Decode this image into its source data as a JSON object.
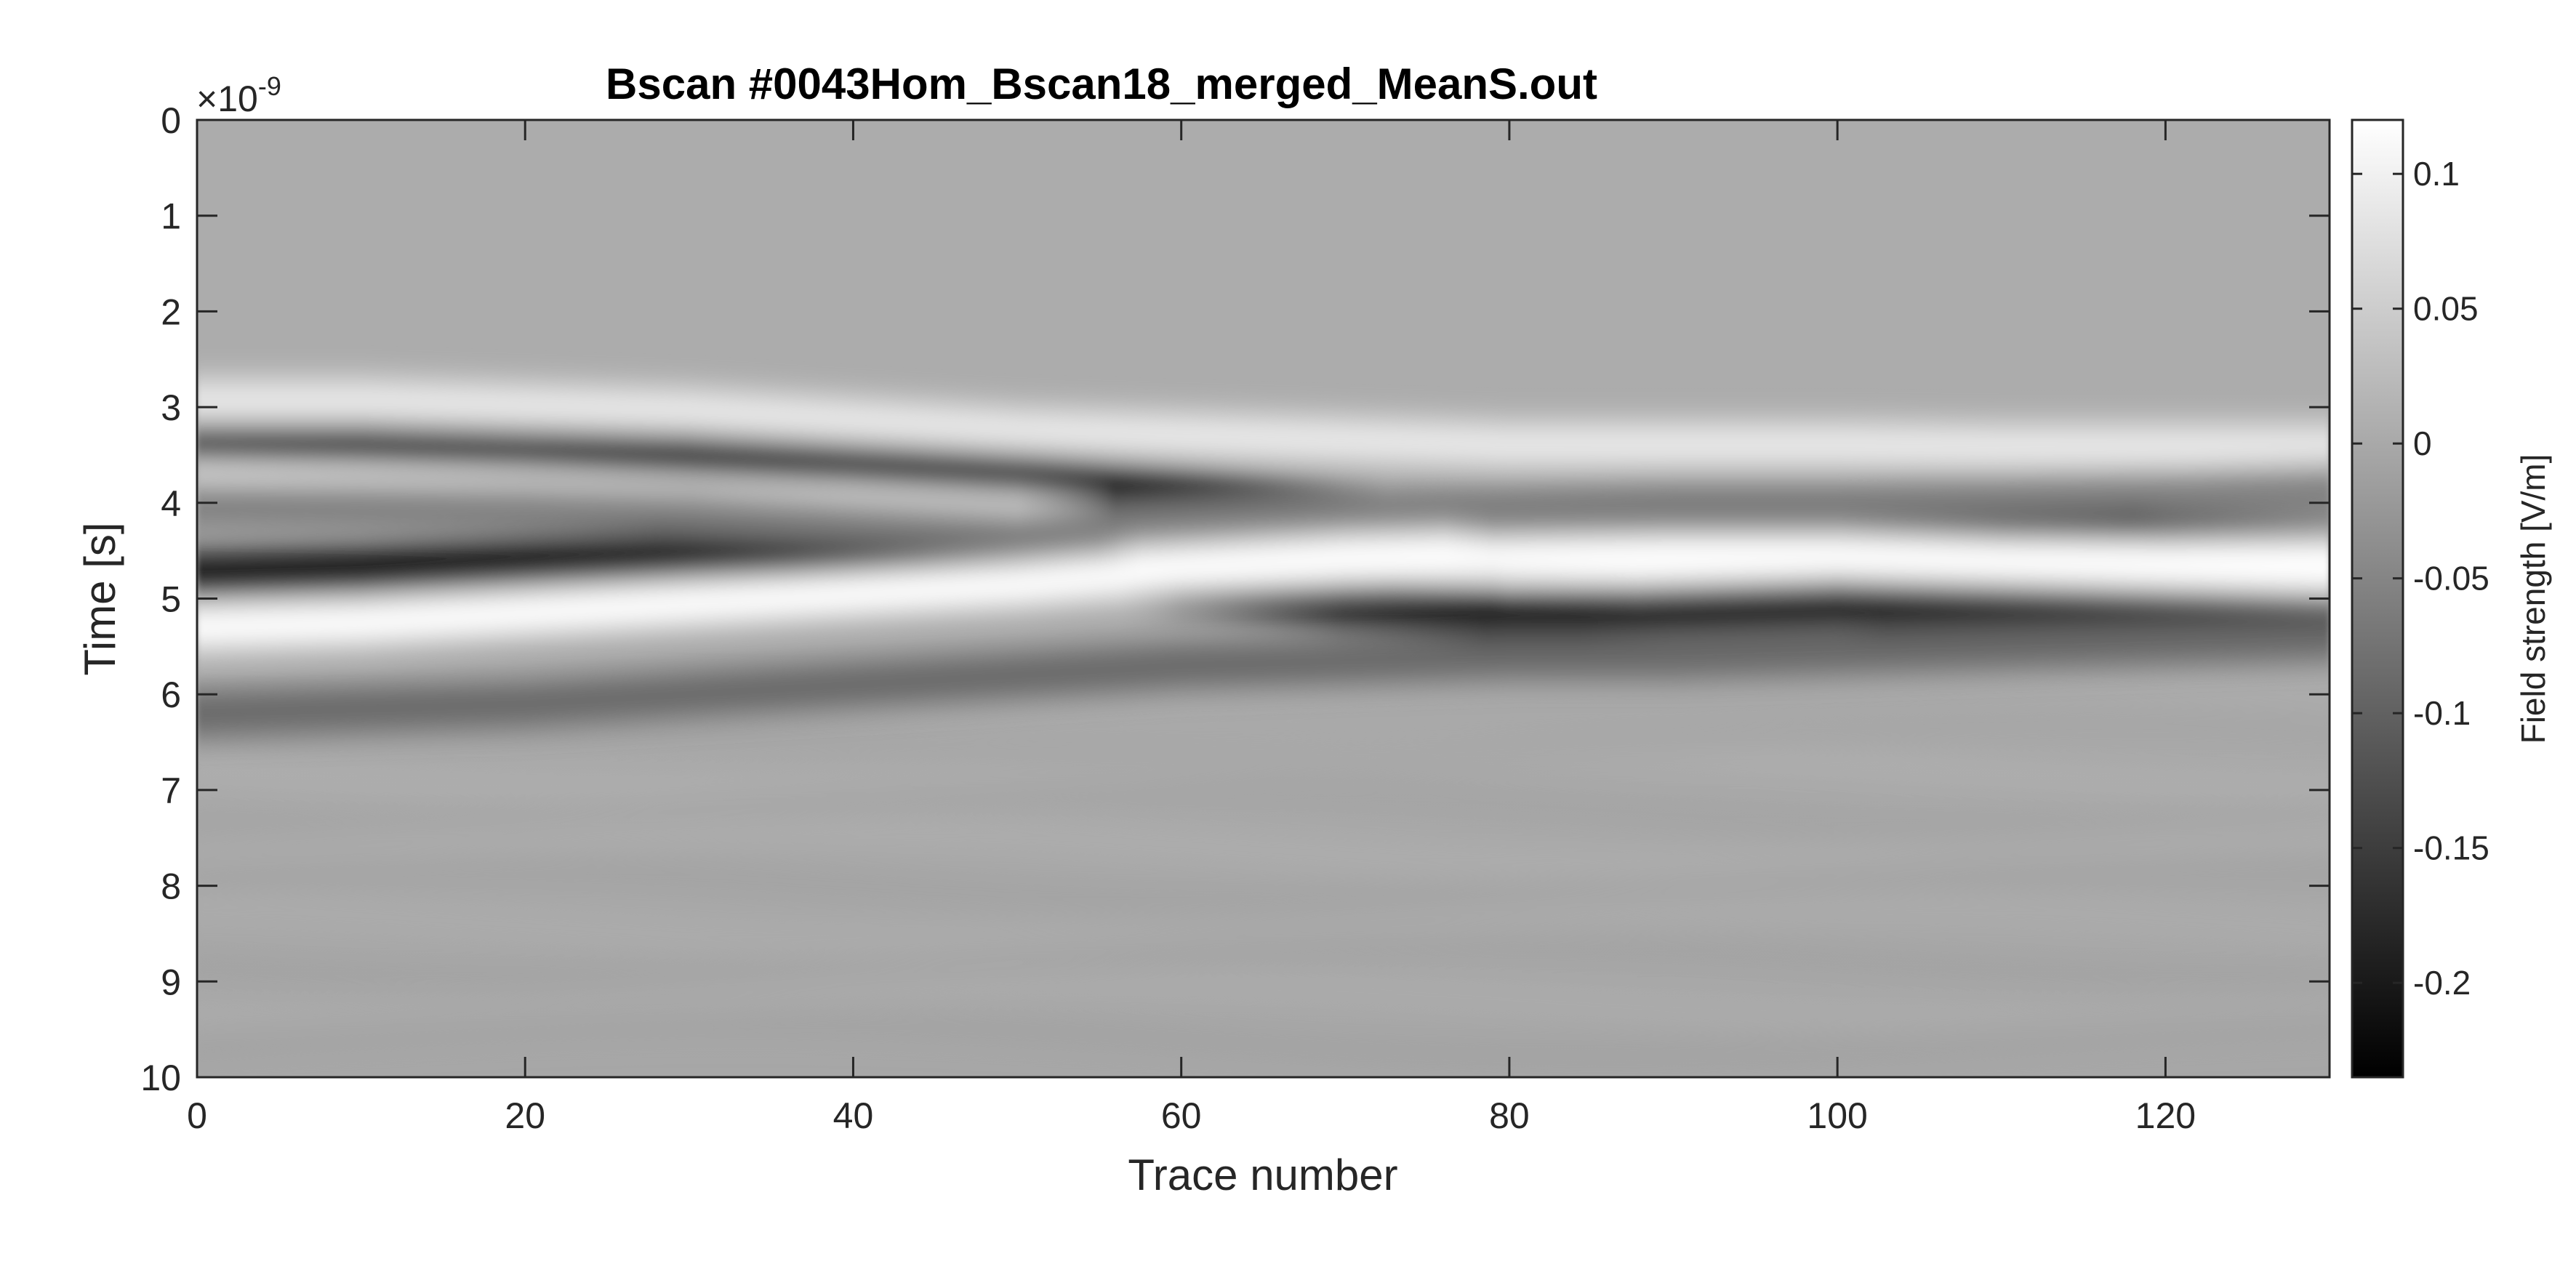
{
  "chart_data": {
    "type": "heatmap",
    "title": "Bscan #0043Hom_Bscan18_merged_MeanS.out",
    "xlabel": "Trace number",
    "ylabel": "Time [s]",
    "y_exponent_label": "×10",
    "y_exponent_power": "-9",
    "xlim": [
      0,
      130
    ],
    "ylim": [
      0,
      10
    ],
    "y_direction": "reversed",
    "x_ticks": [
      "0",
      "20",
      "40",
      "60",
      "80",
      "100",
      "120"
    ],
    "y_ticks": [
      "0",
      "1",
      "2",
      "3",
      "4",
      "5",
      "6",
      "7",
      "8",
      "9",
      "10"
    ],
    "colormap": "gray",
    "colorbar": {
      "label": "Field strength [V/m]",
      "clim": [
        -0.235,
        0.12
      ],
      "ticks": [
        "0.1",
        "0.05",
        "0",
        "-0.05",
        "-0.1",
        "-0.15",
        "-0.2"
      ]
    },
    "reflections": [
      {
        "x": [
          0,
          10,
          20,
          30,
          40,
          50,
          60,
          70,
          80,
          90,
          100,
          110,
          120,
          130
        ],
        "t": [
          3.3,
          3.3,
          3.35,
          3.45,
          3.58,
          3.72,
          3.88,
          4.05,
          4.2,
          4.25,
          4.25,
          4.3,
          4.4,
          4.45
        ],
        "amplitude": -0.23
      },
      {
        "x": [
          0,
          10,
          20,
          30,
          40,
          50,
          60,
          70,
          80,
          90,
          100,
          110,
          120,
          130
        ],
        "t": [
          3.85,
          3.9,
          3.95,
          4.0,
          4.05,
          4.15,
          4.3,
          4.45,
          4.6,
          4.65,
          4.6,
          4.65,
          4.7,
          4.75
        ],
        "amplitude": 0.12
      },
      {
        "x": [
          0,
          10,
          20,
          30,
          40,
          50,
          60,
          70,
          80,
          90,
          100,
          110,
          120,
          130
        ],
        "t": [
          4.75,
          4.7,
          4.62,
          4.55,
          4.5,
          4.6,
          4.85,
          5.05,
          5.15,
          5.1,
          5.05,
          5.1,
          5.15,
          5.2
        ],
        "amplitude": -0.2
      },
      {
        "x": [
          0,
          10,
          20,
          30,
          40,
          50,
          60,
          70,
          80,
          90,
          100,
          110,
          120,
          130
        ],
        "t": [
          5.3,
          5.25,
          5.15,
          5.05,
          4.95,
          4.85,
          4.7,
          4.62,
          4.58,
          4.55,
          4.55,
          4.6,
          4.62,
          4.6
        ],
        "amplitude": 0.12
      },
      {
        "x": [
          0,
          10,
          20,
          30,
          40,
          50,
          60,
          70,
          80,
          90,
          100,
          110,
          120,
          130
        ],
        "t": [
          2.95,
          2.95,
          3.0,
          3.05,
          3.15,
          3.25,
          3.3,
          3.35,
          3.4,
          3.4,
          3.4,
          3.42,
          3.42,
          3.42
        ],
        "amplitude": 0.09
      },
      {
        "x": [
          0,
          10,
          20,
          30,
          40,
          50,
          60,
          70,
          80,
          90,
          100,
          110,
          120,
          130
        ],
        "t": [
          6.2,
          6.15,
          6.1,
          6.0,
          5.9,
          5.8,
          5.7,
          5.65,
          5.6,
          5.6,
          5.55,
          5.5,
          5.45,
          5.4
        ],
        "amplitude": -0.09
      },
      {
        "x": [
          0,
          10,
          20,
          30,
          40,
          50,
          60,
          70,
          80,
          90,
          100,
          110,
          120,
          130
        ],
        "t": [
          4.0,
          4.02,
          4.05,
          4.1,
          4.2,
          4.3,
          4.2,
          4.1,
          4.05,
          4.0,
          4.0,
          3.95,
          3.9,
          3.85
        ],
        "amplitude": -0.06
      }
    ]
  }
}
